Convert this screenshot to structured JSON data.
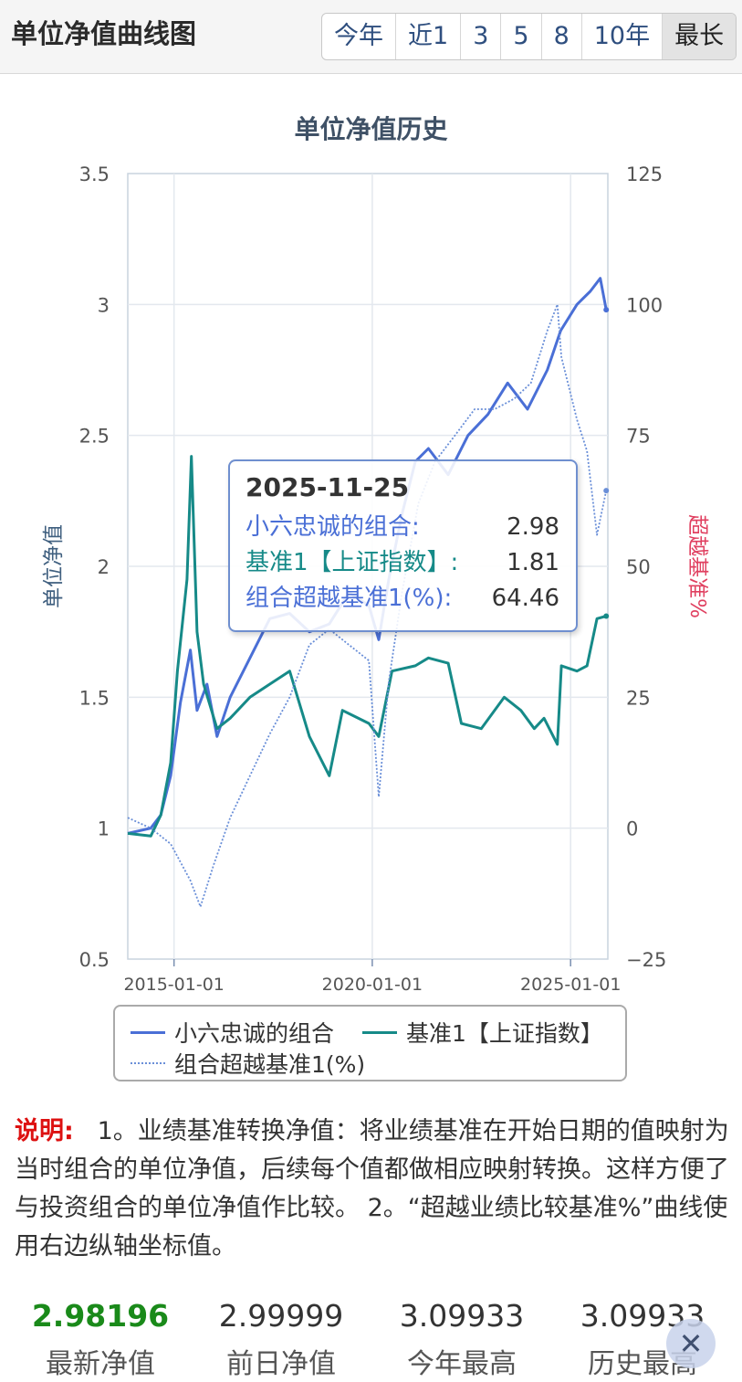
{
  "header": {
    "title": "单位净值曲线图",
    "ranges": [
      "今年",
      "近1",
      "3",
      "5",
      "8",
      "10年",
      "最长"
    ],
    "active_range": "最长"
  },
  "chart": {
    "title": "单位净值历史",
    "y_left_label": "单位净值",
    "y_right_label": "超越基准%",
    "left_ticks": [
      "3.5",
      "3",
      "2.5",
      "2",
      "1.5",
      "1",
      "0.5"
    ],
    "right_ticks": [
      "125",
      "100",
      "75",
      "50",
      "25",
      "0",
      "−25"
    ],
    "x_ticks": [
      "2015-01-01",
      "2020-01-01",
      "2025-01-01"
    ]
  },
  "chart_data": {
    "type": "line",
    "title": "单位净值历史",
    "xlabel": "",
    "ylabel": "单位净值",
    "y2label": "超越基准%",
    "ylim": [
      0.5,
      3.5
    ],
    "y2lim": [
      -25,
      125
    ],
    "x_ticks": [
      "2015-01-01",
      "2020-01-01",
      "2025-01-01"
    ],
    "grid": true,
    "legend": "bottom",
    "series": [
      {
        "name": "小六忠诚的组合",
        "axis": "left",
        "color": "#4a6fd6",
        "x": [
          "2013-11-01",
          "2014-06-01",
          "2014-09-01",
          "2014-12-01",
          "2015-03-01",
          "2015-06-01",
          "2015-08-01",
          "2015-11-01",
          "2016-02-01",
          "2016-06-01",
          "2016-12-01",
          "2017-06-01",
          "2017-12-01",
          "2018-06-01",
          "2018-12-01",
          "2019-06-01",
          "2019-12-01",
          "2020-03-01",
          "2020-06-01",
          "2020-10-01",
          "2021-02-01",
          "2021-06-01",
          "2021-12-01",
          "2022-06-01",
          "2022-12-01",
          "2023-06-01",
          "2023-12-01",
          "2024-06-01",
          "2024-10-01",
          "2025-03-01",
          "2025-07-01",
          "2025-10-01",
          "2025-11-25"
        ],
        "values": [
          0.98,
          1.0,
          1.05,
          1.2,
          1.48,
          1.68,
          1.45,
          1.55,
          1.35,
          1.5,
          1.65,
          1.8,
          1.82,
          1.75,
          1.78,
          1.9,
          1.85,
          1.72,
          1.95,
          2.2,
          2.4,
          2.45,
          2.35,
          2.5,
          2.58,
          2.7,
          2.6,
          2.75,
          2.9,
          3.0,
          3.05,
          3.1,
          2.98
        ]
      },
      {
        "name": "基准1【上证指数】",
        "axis": "left",
        "color": "#168a88",
        "x": [
          "2013-11-01",
          "2014-06-01",
          "2014-09-01",
          "2014-12-01",
          "2015-02-01",
          "2015-05-01",
          "2015-06-10",
          "2015-08-01",
          "2015-10-01",
          "2016-02-01",
          "2016-06-01",
          "2016-12-01",
          "2017-06-01",
          "2017-12-01",
          "2018-06-01",
          "2018-12-01",
          "2019-04-01",
          "2019-12-01",
          "2020-03-01",
          "2020-07-01",
          "2021-02-01",
          "2021-06-01",
          "2021-12-01",
          "2022-04-01",
          "2022-10-01",
          "2023-05-01",
          "2023-10-01",
          "2024-02-01",
          "2024-05-01",
          "2024-09-01",
          "2024-10-08",
          "2025-03-01",
          "2025-06-01",
          "2025-09-01",
          "2025-11-25"
        ],
        "values": [
          0.98,
          0.97,
          1.05,
          1.25,
          1.6,
          1.95,
          2.42,
          1.75,
          1.55,
          1.38,
          1.42,
          1.5,
          1.55,
          1.6,
          1.35,
          1.2,
          1.45,
          1.4,
          1.35,
          1.6,
          1.62,
          1.65,
          1.63,
          1.4,
          1.38,
          1.5,
          1.45,
          1.38,
          1.42,
          1.32,
          1.62,
          1.6,
          1.62,
          1.8,
          1.81
        ]
      },
      {
        "name": "组合超越基准1(%)",
        "axis": "right",
        "color": "#6a8fd8",
        "x": [
          "2013-11-01",
          "2014-06-01",
          "2014-12-01",
          "2015-06-01",
          "2015-09-01",
          "2016-01-01",
          "2016-06-01",
          "2016-12-01",
          "2017-06-01",
          "2017-12-01",
          "2018-06-01",
          "2018-12-01",
          "2019-06-01",
          "2019-12-01",
          "2020-03-01",
          "2020-06-01",
          "2020-10-01",
          "2021-03-01",
          "2021-08-01",
          "2022-02-01",
          "2022-08-01",
          "2023-02-01",
          "2023-08-01",
          "2024-01-01",
          "2024-06-01",
          "2024-09-01",
          "2024-10-08",
          "2025-03-01",
          "2025-06-01",
          "2025-09-01",
          "2025-11-25"
        ],
        "values": [
          2,
          0,
          -3,
          -10,
          -15,
          -7,
          2,
          10,
          18,
          25,
          35,
          38,
          35,
          32,
          6,
          28,
          45,
          62,
          70,
          75,
          80,
          80,
          82,
          85,
          95,
          100,
          90,
          78,
          72,
          56,
          64.46
        ]
      }
    ]
  },
  "tooltip": {
    "date": "2025-11-25",
    "rows": [
      {
        "label": "小六忠诚的组合:",
        "value": "2.98"
      },
      {
        "label": "基准1【上证指数】:",
        "value": "1.81"
      },
      {
        "label": "组合超越基准1(%):",
        "value": "64.46"
      }
    ]
  },
  "legend": [
    "小六忠诚的组合",
    "基准1【上证指数】",
    "组合超越基准1(%)"
  ],
  "note": {
    "label": "说明:",
    "text": "1。业绩基准转换净值：将业绩基准在开始日期的值映射为当时组合的单位净值，后续每个值都做相应映射转换。这样方便了与投资组合的单位净值作比较。 2。“超越业绩比较基准%”曲线使用右边纵轴坐标值。"
  },
  "stats": [
    {
      "value": "2.98196",
      "label": "最新净值"
    },
    {
      "value": "2.99999",
      "label": "前日净值"
    },
    {
      "value": "3.09933",
      "label": "今年最高"
    },
    {
      "value": "3.09933",
      "label": "历史最高"
    }
  ],
  "colors": {
    "portfolio": "#4a6fd6",
    "benchmark": "#168a88",
    "excess": "#6a8fd8",
    "right_axis_label": "#e04060",
    "left_axis_label": "#3f5f7f",
    "latest_value": "#1a8a1a"
  }
}
